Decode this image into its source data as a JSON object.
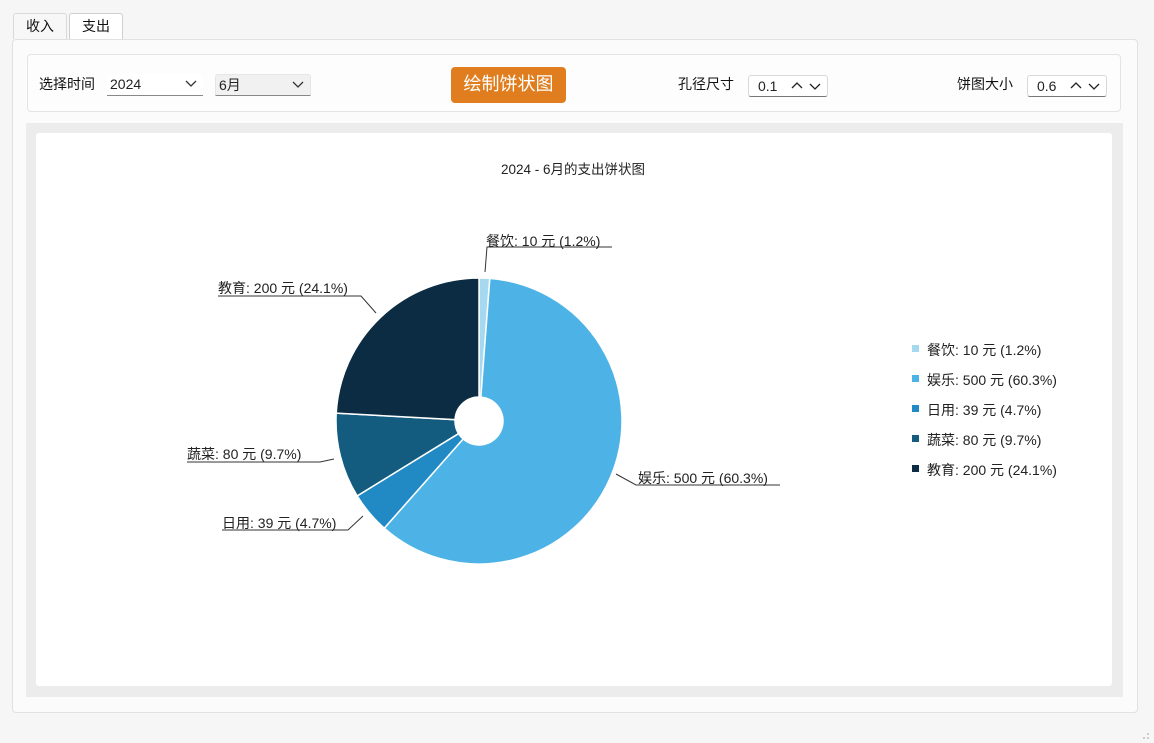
{
  "tabs": [
    {
      "label": "收入"
    },
    {
      "label": "支出"
    }
  ],
  "toolbar": {
    "time_label": "选择时间",
    "year_value": "2024",
    "month_value": "6月",
    "draw_button": "绘制饼状图",
    "hole_label": "孔径尺寸",
    "hole_value": "0.1",
    "size_label": "饼图大小",
    "size_value": "0.6"
  },
  "chart_data": {
    "type": "pie",
    "title": "2024 - 6月的支出饼状图",
    "unit": "元",
    "legend_position": "right",
    "slices": [
      {
        "name": "餐饮",
        "value": 10,
        "percent": 1.2,
        "color": "#a6d9f0",
        "label": "餐饮: 10 元 (1.2%)"
      },
      {
        "name": "娱乐",
        "value": 500,
        "percent": 60.3,
        "color": "#4db3e6",
        "label": "娱乐: 500 元 (60.3%)"
      },
      {
        "name": "日用",
        "value": 39,
        "percent": 4.7,
        "color": "#2189c4",
        "label": "日用: 39 元 (4.7%)"
      },
      {
        "name": "蔬菜",
        "value": 80,
        "percent": 9.7,
        "color": "#135c80",
        "label": "蔬菜: 80 元 (9.7%)"
      },
      {
        "name": "教育",
        "value": 200,
        "percent": 24.1,
        "color": "#0b2c42",
        "label": "教育: 200 元 (24.1%)"
      }
    ]
  }
}
